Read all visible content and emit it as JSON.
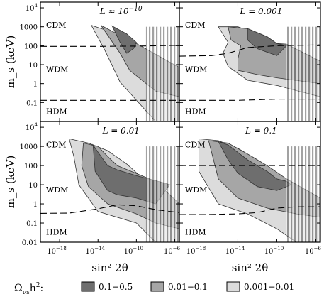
{
  "chart_data": {
    "type": "area",
    "xlabel": "sin² 2θ",
    "ylabel": "m_s (keV)",
    "x_scale": "log",
    "y_scale": "log",
    "xlim": [
      1e-20,
      3e-06
    ],
    "ylim": [
      0.01,
      20000
    ],
    "x_ticks": [
      {
        "value": 1e-18,
        "label": "10",
        "exp": "−18"
      },
      {
        "value": 1e-14,
        "label": "10",
        "exp": "−14"
      },
      {
        "value": 1e-10,
        "label": "10",
        "exp": "−10"
      },
      {
        "value": 1e-06,
        "label": "10",
        "exp": "−6"
      }
    ],
    "y_ticks": [
      {
        "value": 0.01,
        "label": "0.01",
        "exp": ""
      },
      {
        "value": 0.1,
        "label": "0.1",
        "exp": ""
      },
      {
        "value": 1,
        "label": "1",
        "exp": ""
      },
      {
        "value": 10,
        "label": "10",
        "exp": ""
      },
      {
        "value": 100,
        "label": "100",
        "exp": ""
      },
      {
        "value": 1000,
        "label": "1000",
        "exp": ""
      },
      {
        "value": 10000,
        "label": "10",
        "exp": "4"
      }
    ],
    "regime_labels": [
      "CDM",
      "WDM",
      "HDM"
    ],
    "legend": {
      "prefix_main": "Ω",
      "prefix_sub": "νs",
      "prefix_tail": "h",
      "prefix_sup": "2",
      "prefix_colon": ":",
      "entries": [
        {
          "label": "0.1−0.5",
          "color": "#6e6e6e"
        },
        {
          "label": "0.01−0.1",
          "color": "#a6a6a6"
        },
        {
          "label": "0.001−0.01",
          "color": "#dcdcdc"
        }
      ]
    },
    "panels": [
      {
        "label": "L ≈ 10",
        "label_exp": "−10",
        "dashed_upper": [
          [
            1e-20,
            92
          ],
          [
            1e-14,
            92
          ],
          [
            1e-10,
            95
          ],
          [
            3e-06,
            105
          ]
        ],
        "dashed_lower": [
          [
            1e-20,
            0.13
          ],
          [
            1e-14,
            0.13
          ],
          [
            1e-10,
            0.13
          ],
          [
            3e-06,
            0.13
          ]
        ],
        "regions": [
          {
            "band": "0.001-0.01",
            "points": [
              [
                2e-15,
                1200
              ],
              [
                1e-12,
                420
              ],
              [
                1e-10,
                130
              ],
              [
                3e-06,
                7
              ],
              [
                3e-06,
                0.01
              ],
              [
                1e-08,
                0.01
              ],
              [
                2e-12,
                1.2
              ],
              [
                5e-14,
                60
              ]
            ]
          },
          {
            "band": "0.01-0.1",
            "points": [
              [
                2e-14,
                1200
              ],
              [
                1e-12,
                420
              ],
              [
                1e-10,
                130
              ],
              [
                3e-06,
                7
              ],
              [
                3e-06,
                0.2
              ],
              [
                1e-08,
                0.4
              ],
              [
                2e-11,
                5
              ],
              [
                2e-12,
                40
              ]
            ]
          },
          {
            "band": "0.1-0.5",
            "points": [
              [
                3e-13,
                1100
              ],
              [
                1e-11,
                420
              ],
              [
                1e-10,
                150
              ],
              [
                5e-11,
                70
              ],
              [
                1e-11,
                40
              ],
              [
                2e-12,
                150
              ]
            ]
          }
        ]
      },
      {
        "label": "L = 0.001",
        "label_exp": "",
        "dashed_upper": [
          [
            1e-20,
            28
          ],
          [
            2e-17,
            30
          ],
          [
            1e-15,
            40
          ],
          [
            1e-13,
            80
          ],
          [
            1e-10,
            100
          ],
          [
            3e-06,
            110
          ]
        ],
        "dashed_lower": [
          [
            1e-20,
            0.13
          ],
          [
            1e-14,
            0.13
          ],
          [
            1e-10,
            0.15
          ],
          [
            3e-06,
            0.15
          ]
        ],
        "regions": [
          {
            "band": "0.001-0.01",
            "points": [
              [
                1e-16,
                1000
              ],
              [
                1e-14,
                1000
              ],
              [
                1e-12,
                420
              ],
              [
                1e-10,
                130
              ],
              [
                3e-06,
                7
              ],
              [
                3e-06,
                0.2
              ],
              [
                1e-10,
                0.8
              ],
              [
                1e-13,
                1.5
              ],
              [
                1e-15,
                8
              ],
              [
                3e-16,
                40
              ],
              [
                1e-15,
                150
              ]
            ]
          },
          {
            "band": "0.01-0.1",
            "points": [
              [
                1e-15,
                1000
              ],
              [
                1e-13,
                800
              ],
              [
                1e-11,
                300
              ],
              [
                1e-10,
                130
              ],
              [
                1e-09,
                120
              ],
              [
                3e-06,
                15
              ],
              [
                3e-06,
                1
              ],
              [
                1e-10,
                2
              ],
              [
                1e-12,
                3
              ],
              [
                1e-14,
                5
              ],
              [
                1e-14,
                20
              ],
              [
                2e-14,
                100
              ],
              [
                2e-15,
                200
              ]
            ]
          },
          {
            "band": "0.1-0.5",
            "points": [
              [
                1e-13,
                800
              ],
              [
                1e-11,
                300
              ],
              [
                1e-10,
                130
              ],
              [
                1e-09,
                100
              ],
              [
                1e-10,
                30
              ],
              [
                1e-12,
                70
              ],
              [
                1e-13,
                200
              ]
            ]
          }
        ]
      },
      {
        "label": "L = 0.01",
        "label_exp": "",
        "dashed_upper": [
          [
            1e-20,
            105
          ],
          [
            1e-14,
            105
          ],
          [
            1e-10,
            105
          ],
          [
            3e-06,
            105
          ]
        ],
        "dashed_lower": [
          [
            1e-20,
            0.32
          ],
          [
            1e-17,
            0.33
          ],
          [
            1e-14,
            0.55
          ],
          [
            1e-12,
            0.9
          ],
          [
            1e-10,
            0.8
          ],
          [
            1e-08,
            0.5
          ],
          [
            3e-06,
            0.35
          ]
        ],
        "regions": [
          {
            "band": "0.001-0.01",
            "points": [
              [
                1e-17,
                2500
              ],
              [
                1e-15,
                1500
              ],
              [
                1e-13,
                600
              ],
              [
                1e-11,
                120
              ],
              [
                1e-09,
                15
              ],
              [
                3e-06,
                1
              ],
              [
                3e-06,
                0.01
              ],
              [
                1e-08,
                0.01
              ],
              [
                1e-10,
                0.1
              ],
              [
                1e-14,
                0.4
              ],
              [
                1e-16,
                10
              ],
              [
                3e-17,
                300
              ]
            ]
          },
          {
            "band": "0.01-0.1",
            "points": [
              [
                3e-16,
                1500
              ],
              [
                1e-14,
                1000
              ],
              [
                1e-13,
                300
              ],
              [
                1e-12,
                100
              ],
              [
                1e-08,
                15
              ],
              [
                3e-06,
                1
              ],
              [
                3e-06,
                0.05
              ],
              [
                1e-08,
                0.1
              ],
              [
                1e-10,
                0.3
              ],
              [
                1e-13,
                1
              ],
              [
                1e-15,
                8
              ],
              [
                2e-16,
                100
              ]
            ]
          },
          {
            "band": "0.1-0.5",
            "points": [
              [
                3e-15,
                1200
              ],
              [
                1e-14,
                500
              ],
              [
                1e-13,
                100
              ],
              [
                1e-12,
                60
              ],
              [
                1e-10,
                30
              ],
              [
                1e-07,
                12
              ],
              [
                3e-07,
                10
              ],
              [
                1e-08,
                1
              ],
              [
                1e-10,
                2
              ],
              [
                1e-12,
                3
              ],
              [
                1e-13,
                5
              ],
              [
                5e-15,
                50
              ]
            ]
          }
        ]
      },
      {
        "label": "L = 0.1",
        "label_exp": "",
        "dashed_upper": [
          [
            1e-20,
            100
          ],
          [
            1e-14,
            100
          ],
          [
            1e-10,
            100
          ],
          [
            3e-06,
            100
          ]
        ],
        "dashed_lower": [
          [
            1e-20,
            0.28
          ],
          [
            1e-17,
            0.28
          ],
          [
            1e-14,
            0.3
          ],
          [
            1e-12,
            0.35
          ],
          [
            1e-10,
            0.6
          ],
          [
            1e-08,
            0.7
          ],
          [
            3e-06,
            0.7
          ]
        ],
        "regions": [
          {
            "band": "0.001-0.01",
            "points": [
              [
                1e-18,
                2500
              ],
              [
                1e-16,
                2000
              ],
              [
                1e-14,
                800
              ],
              [
                1e-12,
                200
              ],
              [
                1e-10,
                30
              ],
              [
                3e-06,
                1.5
              ],
              [
                3e-06,
                0.01
              ],
              [
                1e-08,
                0.01
              ],
              [
                1e-10,
                0.05
              ],
              [
                1e-13,
                0.3
              ],
              [
                1e-16,
                1
              ],
              [
                1e-18,
                50
              ]
            ]
          },
          {
            "band": "0.01-0.1",
            "points": [
              [
                1e-17,
                2000
              ],
              [
                1e-15,
                1500
              ],
              [
                1e-13,
                400
              ],
              [
                1e-11,
                100
              ],
              [
                1e-09,
                20
              ],
              [
                3e-06,
                2
              ],
              [
                3e-06,
                0.2
              ],
              [
                1e-08,
                0.3
              ],
              [
                1e-11,
                0.6
              ],
              [
                1e-14,
                2
              ],
              [
                1e-16,
                20
              ]
            ]
          },
          {
            "band": "0.1-0.5",
            "points": [
              [
                1e-16,
                1800
              ],
              [
                1e-15,
                1200
              ],
              [
                1e-13,
                200
              ],
              [
                1e-11,
                50
              ],
              [
                1e-10,
                20
              ],
              [
                1e-09,
                15
              ],
              [
                3e-09,
                10
              ],
              [
                1e-10,
                5
              ],
              [
                1e-12,
                8
              ],
              [
                1e-14,
                40
              ],
              [
                1e-15,
                200
              ]
            ]
          }
        ]
      }
    ]
  }
}
